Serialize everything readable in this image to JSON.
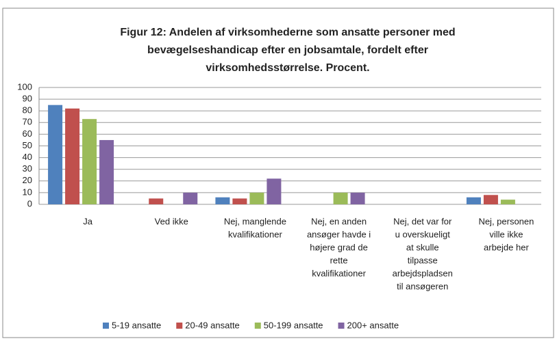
{
  "chart_data": {
    "type": "bar",
    "title": [
      "Figur 12: Andelen af virksomhederne som ansatte personer med",
      "bevægelseshandicap efter en jobsamtale, fordelt efter",
      "virksomhedsstørrelse. Procent."
    ],
    "categories": [
      [
        "Ja"
      ],
      [
        "Ved ikke"
      ],
      [
        "Nej, manglende",
        "kvalifikationer"
      ],
      [
        "Nej, en anden",
        "ansøger havde i",
        "højere grad de",
        "rette",
        "kvalifikationer"
      ],
      [
        "Nej, det var for",
        "u overskueligt",
        "at skulle",
        "tilpasse",
        "arbejdspladsen",
        "til ansøgeren"
      ],
      [
        "Nej, personen",
        "ville ikke",
        "arbejde her"
      ]
    ],
    "series": [
      {
        "name": "5-19 ansatte",
        "color": "#4f81bd",
        "values": [
          85,
          0,
          6,
          0,
          0,
          6
        ]
      },
      {
        "name": "20-49 ansatte",
        "color": "#c0504d",
        "values": [
          82,
          5,
          5,
          0,
          0,
          8
        ]
      },
      {
        "name": "50-199 ansatte",
        "color": "#9bbb59",
        "values": [
          73,
          0,
          10,
          10,
          0,
          4
        ]
      },
      {
        "name": "200+ ansatte",
        "color": "#8064a2",
        "values": [
          55,
          10,
          22,
          10,
          0,
          0
        ]
      }
    ],
    "ylim": [
      0,
      100
    ],
    "yticks": [
      0,
      10,
      20,
      30,
      40,
      50,
      60,
      70,
      80,
      90,
      100
    ],
    "grid": true,
    "legend": "bottom"
  }
}
